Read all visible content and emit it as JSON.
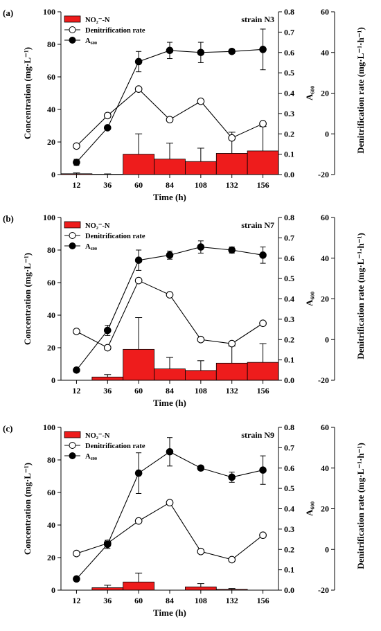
{
  "chart_data": [
    {
      "type": "bar",
      "panel_label": "(a)",
      "strain": "strain N3",
      "x": [
        12,
        36,
        60,
        84,
        108,
        132,
        156
      ],
      "xlabel": "Time (h)",
      "ylabel_left": "Concentration (mg·L⁻¹)",
      "ylabel_a600": "A₆₀₀",
      "ylabel_rate": "Denitrification rate (mg·L⁻¹·h⁻¹)",
      "ylim_left": [
        0,
        100
      ],
      "ylim_a600": [
        0,
        0.8
      ],
      "ylim_rate": [
        -20,
        60
      ],
      "legend": [
        "NO₂⁻-N",
        "Denitrification rate",
        "A₆₀₀"
      ],
      "series": [
        {
          "name": "NO₂⁻-N",
          "kind": "bar",
          "values": [
            0.5,
            0.2,
            12.5,
            9.5,
            8,
            13,
            14.5
          ],
          "err": [
            0.5,
            0.2,
            12.5,
            9.8,
            8.2,
            13,
            15
          ]
        },
        {
          "name": "Denitrification rate",
          "kind": "line-open",
          "values": [
            -6,
            9,
            22,
            7,
            16,
            -2,
            5
          ]
        },
        {
          "name": "A₆₀₀",
          "kind": "line-filled",
          "values": [
            0.06,
            0.23,
            0.555,
            0.61,
            0.6,
            0.605,
            0.615
          ],
          "err": [
            0.015,
            0.01,
            0.05,
            0.04,
            0.05,
            0.01,
            0.1
          ]
        }
      ],
      "colors": {
        "bar": "#ee1c1c",
        "line": "#000000"
      }
    },
    {
      "type": "bar",
      "panel_label": "(b)",
      "strain": "strain N7",
      "x": [
        12,
        36,
        60,
        84,
        108,
        132,
        156
      ],
      "xlabel": "Time (h)",
      "ylabel_left": "Concentration (mg·L⁻¹)",
      "ylabel_a600": "A₆₀₀",
      "ylabel_rate": "Denitrification rate (mg·L⁻¹·h⁻¹)",
      "ylim_left": [
        0,
        100
      ],
      "ylim_a600": [
        0,
        0.8
      ],
      "ylim_rate": [
        -20,
        60
      ],
      "legend": [
        "NO₂⁻-N",
        "Denitrification rate",
        "A₆₀₀"
      ],
      "series": [
        {
          "name": "NO₂⁻-N",
          "kind": "bar",
          "values": [
            0,
            2,
            19,
            7,
            6,
            10.5,
            11
          ],
          "err": [
            0,
            1.5,
            19.5,
            7,
            6,
            10.5,
            11.5
          ]
        },
        {
          "name": "Denitrification rate",
          "kind": "line-open",
          "values": [
            4,
            -4,
            29,
            22,
            0,
            -2,
            8
          ]
        },
        {
          "name": "A₆₀₀",
          "kind": "line-filled",
          "values": [
            0.05,
            0.245,
            0.59,
            0.615,
            0.655,
            0.64,
            0.615
          ],
          "err": [
            0.005,
            0.025,
            0.05,
            0.02,
            0.03,
            0.015,
            0.04
          ]
        }
      ],
      "colors": {
        "bar": "#ee1c1c",
        "line": "#000000"
      }
    },
    {
      "type": "bar",
      "panel_label": "(c)",
      "strain": "strain N9",
      "x": [
        12,
        36,
        60,
        84,
        108,
        132,
        156
      ],
      "xlabel": "Time (h)",
      "ylabel_left": "Concentration (mg·L⁻¹)",
      "ylabel_a600": "A₆₀₀",
      "ylabel_rate": "Denitrification rate (mg·L⁻¹·h⁻¹)",
      "ylim_left": [
        0,
        100
      ],
      "ylim_a600": [
        0,
        0.8
      ],
      "ylim_rate": [
        -20,
        60
      ],
      "legend": [
        "NO₂⁻-N",
        "Denitrification rate",
        "A₆₀₀"
      ],
      "series": [
        {
          "name": "NO₂⁻-N",
          "kind": "bar",
          "values": [
            0,
            1.5,
            5,
            0,
            2,
            0.5,
            0
          ],
          "err": [
            0,
            1.5,
            5.5,
            0,
            2,
            0.5,
            0
          ]
        },
        {
          "name": "Denitrification rate",
          "kind": "line-open",
          "values": [
            -2,
            3,
            14,
            23,
            -1,
            -5,
            7
          ]
        },
        {
          "name": "A₆₀₀",
          "kind": "line-filled",
          "values": [
            0.055,
            0.225,
            0.575,
            0.68,
            0.6,
            0.555,
            0.59
          ],
          "err": [
            0.005,
            0.02,
            0.1,
            0.07,
            0.01,
            0.025,
            0.07
          ]
        }
      ],
      "colors": {
        "bar": "#ee1c1c",
        "line": "#000000"
      }
    }
  ]
}
